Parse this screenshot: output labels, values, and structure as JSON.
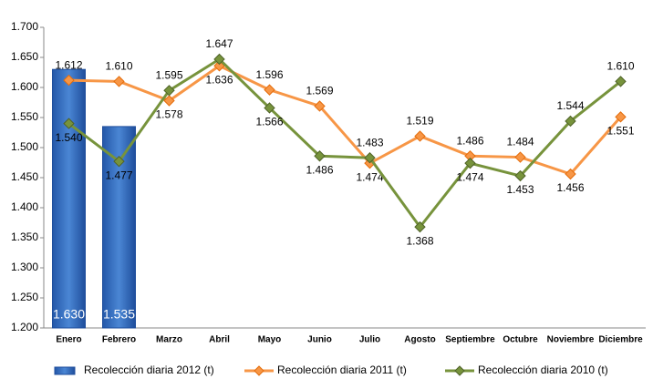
{
  "chart_data": {
    "type": "bar-line",
    "categories": [
      "Enero",
      "Febrero",
      "Marzo",
      "Abril",
      "Mayo",
      "Junio",
      "Julio",
      "Agosto",
      "Septiembre",
      "Octubre",
      "Noviembre",
      "Diciembre"
    ],
    "series": [
      {
        "name": "Recolección diaria  2012 (t)",
        "type": "bar",
        "color": "#3a6fc0",
        "values": [
          1630,
          1535,
          null,
          null,
          null,
          null,
          null,
          null,
          null,
          null,
          null,
          null
        ],
        "value_labels": [
          "1.630",
          "1.535",
          null,
          null,
          null,
          null,
          null,
          null,
          null,
          null,
          null,
          null
        ]
      },
      {
        "name": "Recolección diaria  2011 (t)",
        "type": "line",
        "color": "#f79646",
        "values": [
          1612,
          1610,
          1578,
          1636,
          1596,
          1569,
          1474,
          1519,
          1486,
          1484,
          1456,
          1551
        ],
        "value_labels": [
          "1.612",
          "1.610",
          "1.578",
          "1.636",
          "1.596",
          "1.569",
          "1.474",
          "1.519",
          "1.486",
          "1.484",
          "1.456",
          "1.551"
        ]
      },
      {
        "name": "Recolección diaria 2010 (t)",
        "type": "line",
        "color": "#77933c",
        "values": [
          1540,
          1477,
          1595,
          1647,
          1566,
          1486,
          1483,
          1368,
          1474,
          1453,
          1544,
          1610
        ],
        "value_labels": [
          "1.540",
          "1.477",
          "1.595",
          "1.647",
          "1.566",
          "1.486",
          "1.483",
          "1.368",
          "1.474",
          "1.453",
          "1.544",
          "1.610"
        ]
      }
    ],
    "ylim": [
      1200,
      1700
    ],
    "yticks": [
      {
        "value": 1200,
        "label": "1.200"
      },
      {
        "value": 1250,
        "label": "1.250"
      },
      {
        "value": 1300,
        "label": "1.300"
      },
      {
        "value": 1350,
        "label": "1.350"
      },
      {
        "value": 1400,
        "label": "1.400"
      },
      {
        "value": 1450,
        "label": "1.450"
      },
      {
        "value": 1500,
        "label": "1.500"
      },
      {
        "value": 1550,
        "label": "1.550"
      },
      {
        "value": 1600,
        "label": "1.600"
      },
      {
        "value": 1650,
        "label": "1.650"
      },
      {
        "value": 1700,
        "label": "1.700"
      }
    ],
    "grid": false,
    "legend": "bottom"
  }
}
